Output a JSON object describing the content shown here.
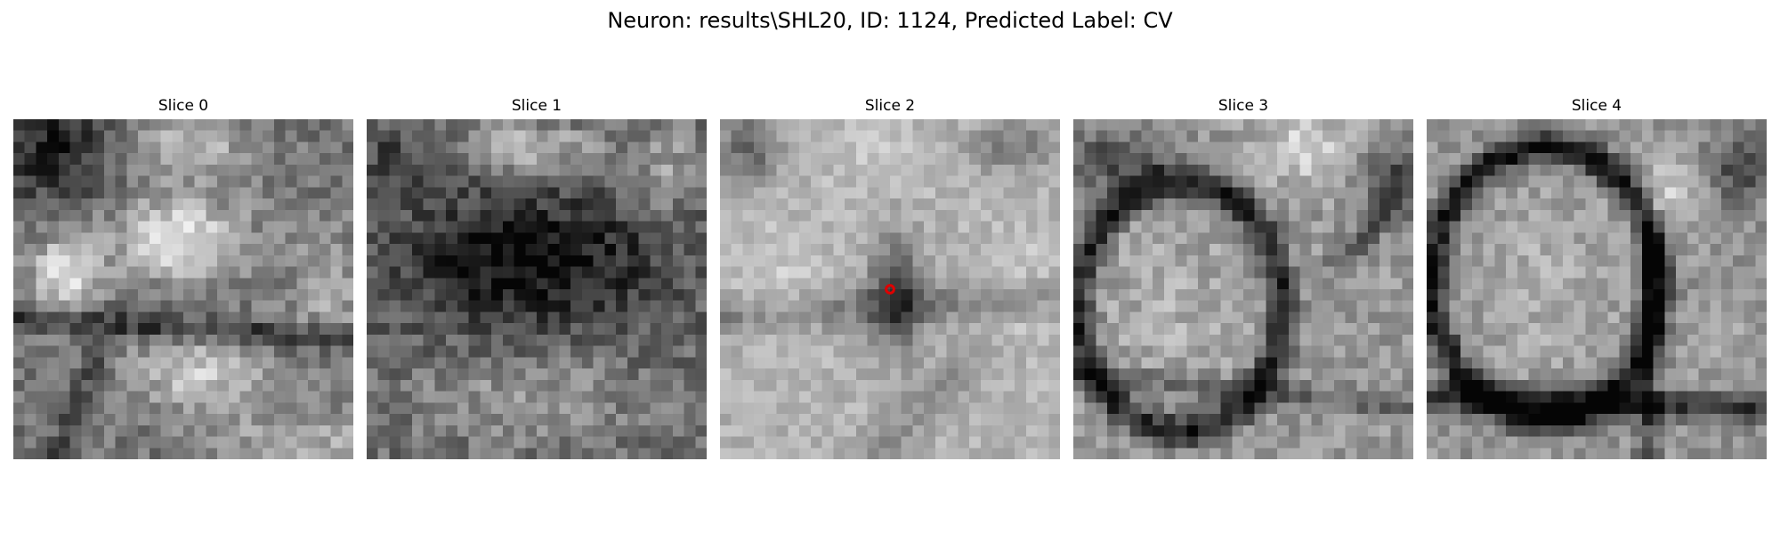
{
  "figure": {
    "title": "Neuron: results\\SHL20, ID: 1124, Predicted Label: CV"
  },
  "slices": [
    {
      "title": "Slice 0",
      "description": "grayscale microscopy slice with bright rounded cell bodies"
    },
    {
      "title": "Slice 1",
      "description": "grayscale microscopy slice with a dark central region"
    },
    {
      "title": "Slice 2",
      "description": "grayscale microscopy slice with a red marker at the predicted location"
    },
    {
      "title": "Slice 3",
      "description": "grayscale microscopy slice with a dark ring-like membrane"
    },
    {
      "title": "Slice 4",
      "description": "grayscale microscopy slice with a bright cell outlined by dark membrane"
    }
  ],
  "marker": {
    "slice_index": 2,
    "color": "#e00000",
    "icon": "red-circle-marker-icon"
  }
}
